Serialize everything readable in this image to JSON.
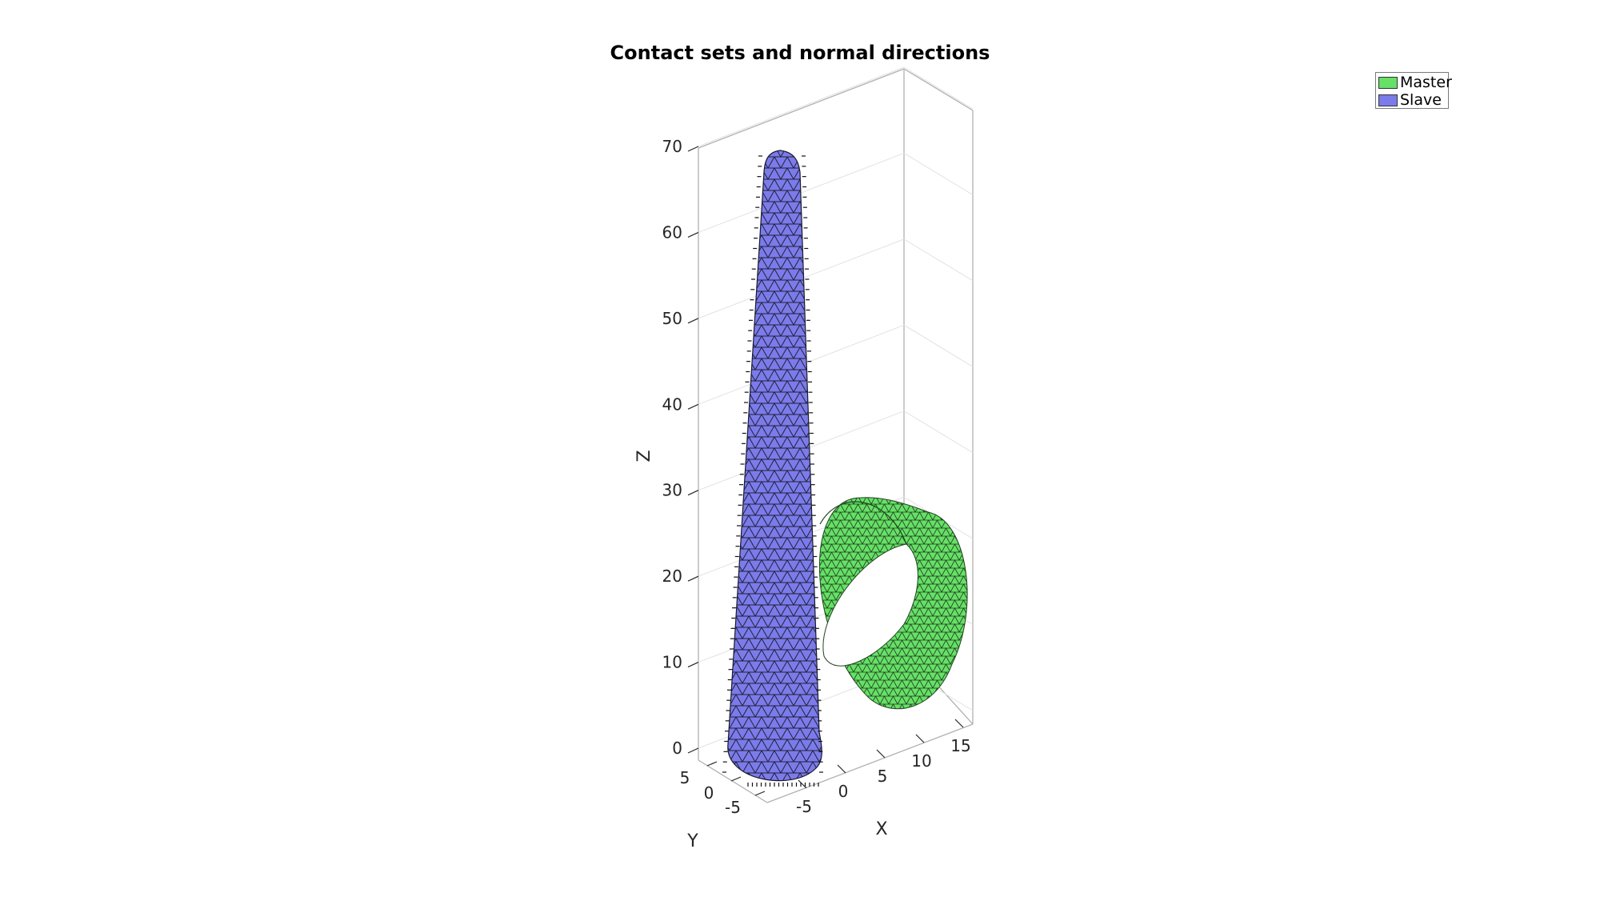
{
  "chart_data": {
    "type": "surface3d",
    "title": "Contact sets and normal directions",
    "xlabel": "X",
    "ylabel": "Y",
    "zlabel": "Z",
    "x_ticks": [
      -5,
      0,
      5,
      10,
      15
    ],
    "y_ticks": [
      -5,
      0,
      5
    ],
    "z_ticks": [
      0,
      10,
      20,
      30,
      40,
      50,
      60,
      70
    ],
    "xlim": [
      -8,
      18
    ],
    "ylim": [
      -8,
      8
    ],
    "zlim": [
      -2,
      72
    ],
    "grid": true,
    "legend_position": "top-right",
    "series": [
      {
        "name": "Master",
        "shape": "cylindrical ring",
        "color": "#66e066",
        "center": [
          8,
          0,
          20
        ],
        "radius": 8,
        "axis": "x",
        "x_extent": [
          4,
          12
        ]
      },
      {
        "name": "Slave",
        "shape": "tapered cone",
        "color": "#7b7bea",
        "base_center": [
          -4,
          0,
          0
        ],
        "base_radius": 4,
        "top_radius": 1,
        "height": 70
      }
    ],
    "annotations": [
      "normal direction arrows on contact surfaces"
    ]
  },
  "colors": {
    "master": "#66e066",
    "slave": "#7b7bea",
    "mesh_edge": "#1a1a1a"
  }
}
